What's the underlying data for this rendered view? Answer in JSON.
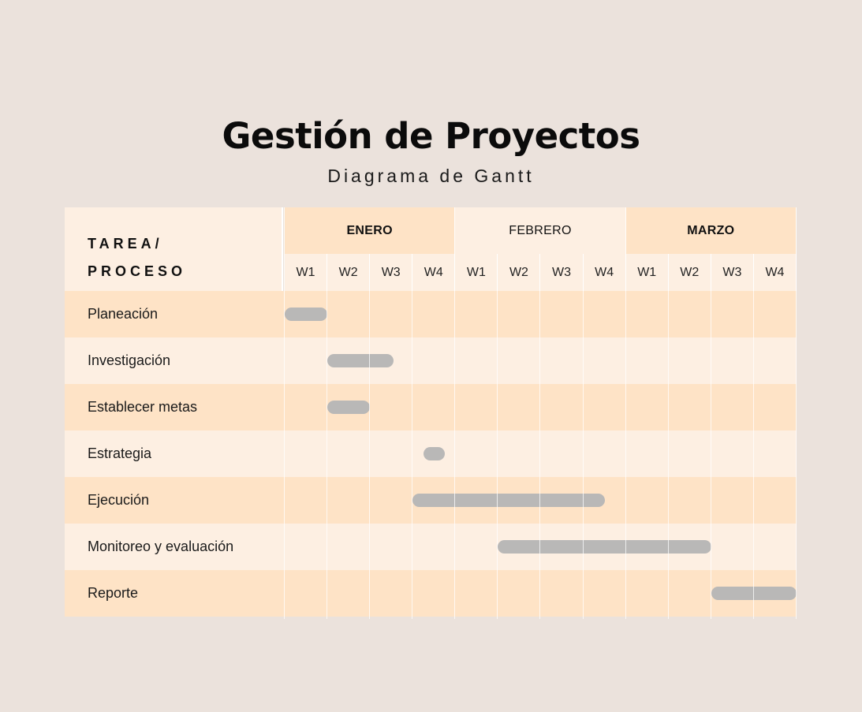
{
  "title": "Gestión de Proyectos",
  "subtitle": "Diagrama de Gantt",
  "header": {
    "task_line1": "TAREA/",
    "task_line2": "PROCESO"
  },
  "months": [
    {
      "label": "ENERO",
      "bold": true,
      "color": "#fee3c6"
    },
    {
      "label": "FEBRERO",
      "bold": false,
      "color": "#fdefe2"
    },
    {
      "label": "MARZO",
      "bold": true,
      "color": "#fee3c6"
    }
  ],
  "weeks": [
    "W1",
    "W2",
    "W3",
    "W4"
  ],
  "colors": {
    "row_dark": "#fee3c6",
    "row_light": "#fdefe2",
    "bar": "#b9b8b7",
    "background": "#ebe2dc"
  },
  "tasks": [
    {
      "label": "Planeación",
      "start": 0.0,
      "end": 1.0
    },
    {
      "label": "Investigación",
      "start": 1.0,
      "end": 2.55
    },
    {
      "label": "Establecer metas",
      "start": 1.0,
      "end": 2.0
    },
    {
      "label": "Estrategia",
      "start": 3.25,
      "end": 3.75
    },
    {
      "label": "Ejecución",
      "start": 3.0,
      "end": 7.5
    },
    {
      "label": "Monitoreo y evaluación",
      "start": 5.0,
      "end": 10.0
    },
    {
      "label": "Reporte",
      "start": 10.0,
      "end": 12.0
    }
  ]
}
